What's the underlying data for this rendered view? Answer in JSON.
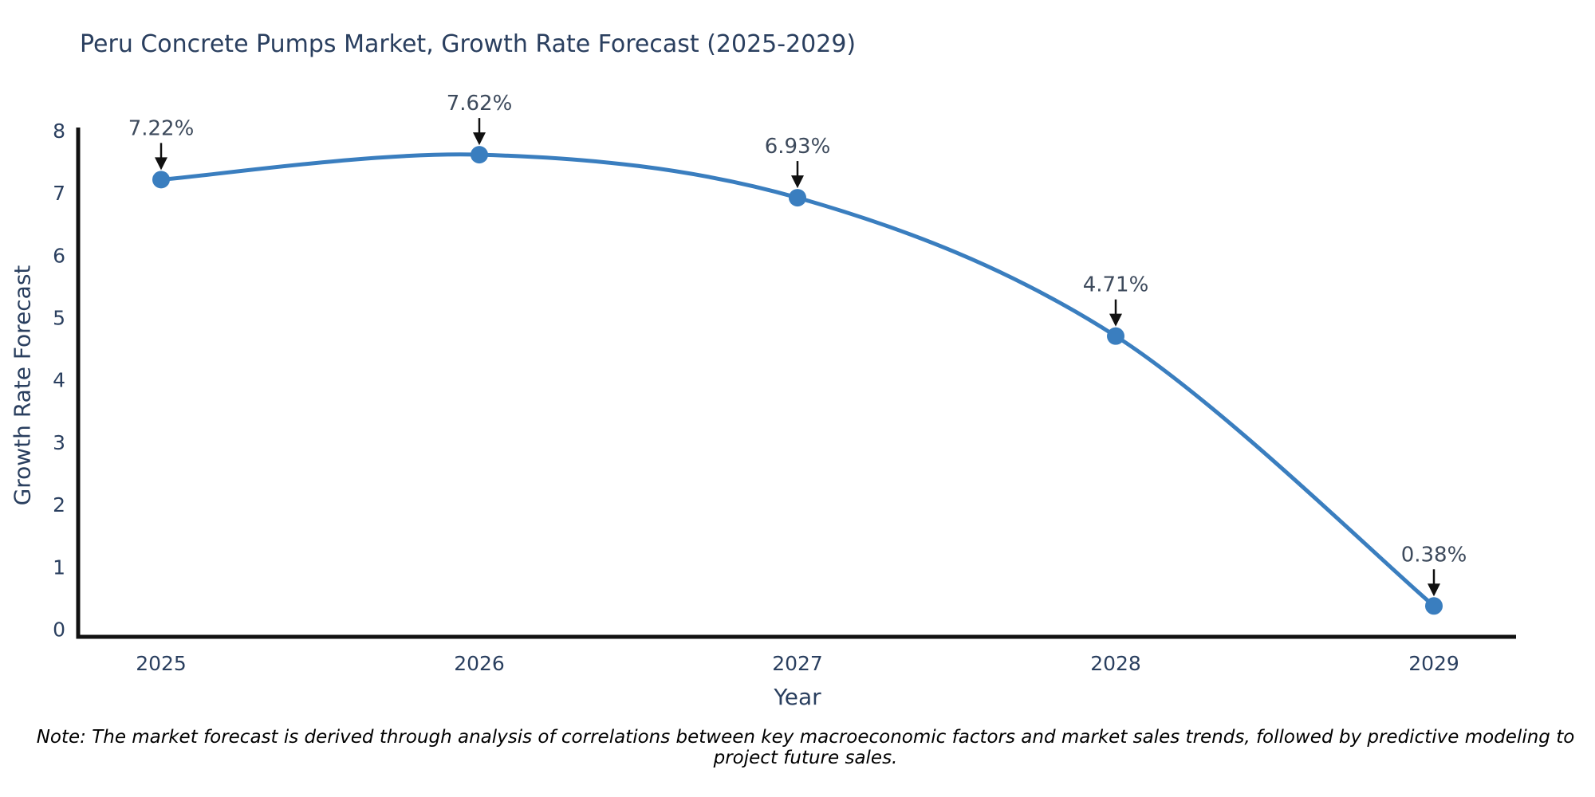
{
  "title": "Peru Concrete Pumps Market, Growth Rate Forecast (2025-2029)",
  "note": "Note: The market forecast is derived through analysis of correlations between key macroeconomic factors and market sales trends, followed by predictive modeling to project future sales.",
  "chart_data": {
    "type": "line",
    "line_shape": "spline",
    "x": [
      "2025",
      "2026",
      "2027",
      "2028",
      "2029"
    ],
    "series": [
      {
        "name": "Growth Rate Forecast",
        "values": [
          7.22,
          7.62,
          6.93,
          4.71,
          0.38
        ]
      }
    ],
    "data_labels": [
      "7.22%",
      "7.62%",
      "6.93%",
      "4.71%",
      "0.38%"
    ],
    "title": "Peru Concrete Pumps Market, Growth Rate Forecast (2025-2029)",
    "xlabel": "Year",
    "ylabel": "Growth Rate Forecast",
    "ylim": [
      0,
      8
    ],
    "yticks": [
      0,
      1,
      2,
      3,
      4,
      5,
      6,
      7,
      8
    ],
    "grid": false,
    "legend": "none",
    "colors": {
      "line": "#3a7ebf",
      "marker": "#3a7ebf",
      "axis_line": "#111111",
      "tick_text": "#2a3f5f",
      "annotation_text": "#3d4a5c",
      "annotation_arrow": "#111111",
      "background": "#ffffff"
    }
  }
}
